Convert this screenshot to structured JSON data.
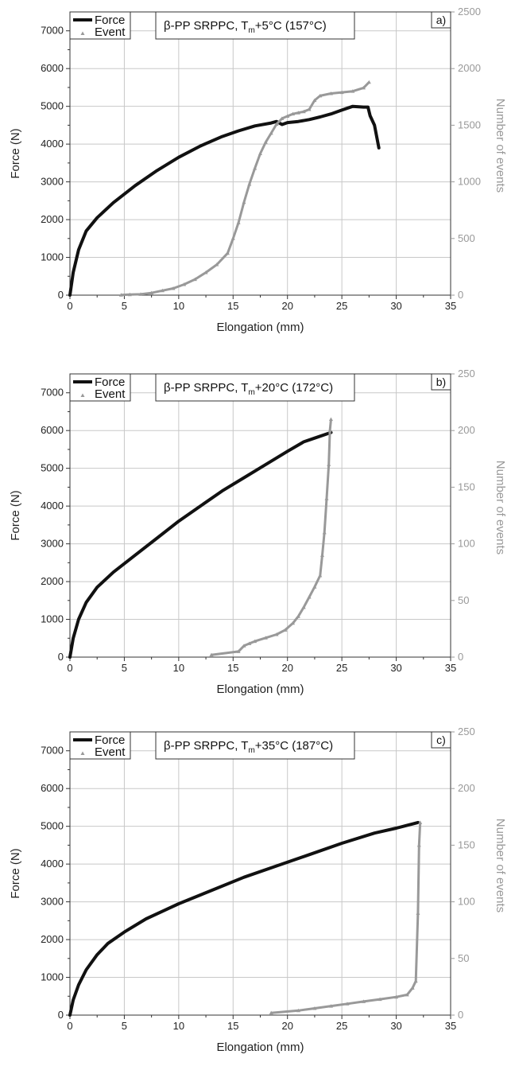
{
  "colors": {
    "force": "#111111",
    "event": "#999999",
    "grid": "#c8c8c8",
    "axis": "#333333"
  },
  "legend": {
    "force_label": "Force",
    "event_label": "Event"
  },
  "chart_data": [
    {
      "type": "line",
      "panel_label": "a)",
      "title": {
        "prefix": "β-PP SRPPC, T",
        "subscript": "m",
        "suffix": "+5°C (157°C)"
      },
      "xlabel": "Elongation (mm)",
      "ylabel": "Force (N)",
      "y2label": "Number of events",
      "xlim": [
        0,
        35
      ],
      "ylim": [
        0,
        7500
      ],
      "y2lim": [
        0,
        2500
      ],
      "xticks": [
        "0",
        "5",
        "10",
        "15",
        "20",
        "25",
        "30",
        "35"
      ],
      "yticks": [
        "0",
        "1000",
        "2000",
        "3000",
        "4000",
        "5000",
        "6000",
        "7000"
      ],
      "y2ticks": [
        "0",
        "500",
        "1000",
        "1500",
        "2000",
        "2500"
      ],
      "grid": true,
      "series": [
        {
          "name": "Force",
          "axis": "left",
          "x": [
            0,
            0.3,
            0.8,
            1.5,
            2.5,
            4,
            6,
            8,
            10,
            12,
            14,
            15.5,
            17,
            18.5,
            19,
            19.5,
            20,
            21,
            22,
            23,
            24,
            25,
            26,
            27,
            27.4,
            27.6,
            28,
            28.4
          ],
          "y": [
            0,
            600,
            1200,
            1700,
            2050,
            2450,
            2900,
            3300,
            3650,
            3950,
            4200,
            4350,
            4480,
            4560,
            4600,
            4520,
            4570,
            4600,
            4650,
            4720,
            4800,
            4900,
            5000,
            4980,
            4980,
            4750,
            4500,
            3900
          ]
        },
        {
          "name": "Event",
          "axis": "right",
          "x": [
            4.7,
            5.5,
            6.5,
            7.5,
            8.5,
            9.5,
            10.5,
            11.5,
            12.5,
            13.5,
            14.5,
            15,
            15.5,
            16,
            16.5,
            17,
            17.5,
            18,
            18.5,
            19,
            19.5,
            20,
            20.5,
            21,
            21.5,
            22,
            22.5,
            23,
            24,
            25,
            26,
            27,
            27.5
          ],
          "y": [
            2,
            5,
            8,
            20,
            40,
            60,
            95,
            140,
            200,
            270,
            370,
            500,
            640,
            820,
            980,
            1120,
            1250,
            1350,
            1430,
            1510,
            1560,
            1580,
            1600,
            1610,
            1620,
            1640,
            1720,
            1760,
            1780,
            1790,
            1800,
            1830,
            1880
          ]
        }
      ]
    },
    {
      "type": "line",
      "panel_label": "b)",
      "title": {
        "prefix": "β-PP SRPPC, T",
        "subscript": "m",
        "suffix": "+20°C (172°C)"
      },
      "xlabel": "Elongation (mm)",
      "ylabel": "Force (N)",
      "y2label": "Number of events",
      "xlim": [
        0,
        35
      ],
      "ylim": [
        0,
        7500
      ],
      "y2lim": [
        0,
        250
      ],
      "xticks": [
        "0",
        "5",
        "10",
        "15",
        "20",
        "25",
        "30",
        "35"
      ],
      "yticks": [
        "0",
        "1000",
        "2000",
        "3000",
        "4000",
        "5000",
        "6000",
        "7000"
      ],
      "y2ticks": [
        "0",
        "50",
        "100",
        "150",
        "200",
        "250"
      ],
      "grid": true,
      "series": [
        {
          "name": "Force",
          "axis": "left",
          "x": [
            0,
            0.3,
            0.8,
            1.5,
            2.5,
            4,
            6,
            8,
            10,
            12,
            14,
            16,
            18,
            20,
            21.5,
            22.5,
            24
          ],
          "y": [
            0,
            500,
            1000,
            1450,
            1850,
            2250,
            2700,
            3150,
            3600,
            4000,
            4400,
            4750,
            5100,
            5450,
            5700,
            5800,
            5950
          ]
        },
        {
          "name": "Event",
          "axis": "right",
          "x": [
            13,
            15.5,
            16,
            16.5,
            17,
            18,
            19,
            19.8,
            20.5,
            21,
            21.5,
            22,
            22.5,
            23,
            23.2,
            23.4,
            23.6,
            23.8,
            23.9,
            24
          ],
          "y": [
            2,
            5,
            10,
            12,
            14,
            17,
            20,
            24,
            30,
            36,
            44,
            53,
            62,
            72,
            90,
            110,
            140,
            170,
            200,
            210
          ]
        }
      ]
    },
    {
      "type": "line",
      "panel_label": "c)",
      "title": {
        "prefix": "β-PP SRPPC, T",
        "subscript": "m",
        "suffix": "+35°C (187°C)"
      },
      "xlabel": "Elongation (mm)",
      "ylabel": "Force (N)",
      "y2label": "Number of events",
      "xlim": [
        0,
        35
      ],
      "ylim": [
        0,
        7500
      ],
      "y2lim": [
        0,
        250
      ],
      "xticks": [
        "0",
        "5",
        "10",
        "15",
        "20",
        "25",
        "30",
        "35"
      ],
      "yticks": [
        "0",
        "1000",
        "2000",
        "3000",
        "4000",
        "5000",
        "6000",
        "7000"
      ],
      "y2ticks": [
        "0",
        "50",
        "100",
        "150",
        "200",
        "250"
      ],
      "grid": true,
      "series": [
        {
          "name": "Force",
          "axis": "left",
          "x": [
            0,
            0.3,
            0.8,
            1.5,
            2.5,
            3.5,
            5,
            7,
            10,
            13,
            16,
            19,
            22,
            25,
            28,
            30,
            32
          ],
          "y": [
            0,
            400,
            800,
            1200,
            1600,
            1900,
            2200,
            2550,
            2950,
            3300,
            3650,
            3950,
            4250,
            4550,
            4820,
            4950,
            5100
          ]
        },
        {
          "name": "Event",
          "axis": "right",
          "x": [
            18.5,
            21,
            22.5,
            24,
            25.5,
            27,
            28.5,
            30,
            31,
            31.5,
            31.8,
            32,
            32.1,
            32.2
          ],
          "y": [
            2,
            4,
            6,
            8,
            10,
            12,
            14,
            16,
            18,
            24,
            30,
            90,
            150,
            170
          ]
        }
      ]
    }
  ]
}
